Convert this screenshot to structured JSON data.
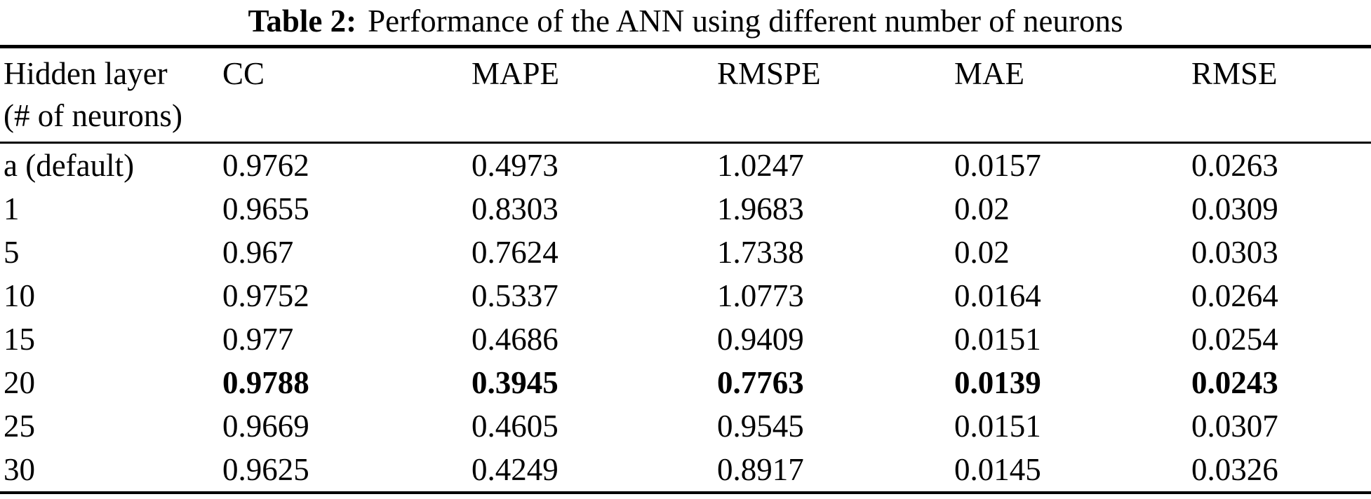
{
  "caption": {
    "label": "Table 2:",
    "text": "Performance of the ANN using different number of neurons"
  },
  "table": {
    "headers": [
      "Hidden layer\n(# of neurons)",
      "CC",
      "MAPE",
      "RMSPE",
      "MAE",
      "RMSE"
    ],
    "rows": [
      {
        "cells": [
          "a (default)",
          "0.9762",
          "0.4973",
          "1.0247",
          "0.0157",
          "0.0263"
        ],
        "emphasis": false
      },
      {
        "cells": [
          "1",
          "0.9655",
          "0.8303",
          "1.9683",
          "0.02",
          "0.0309"
        ],
        "emphasis": false
      },
      {
        "cells": [
          "5",
          "0.967",
          "0.7624",
          "1.7338",
          "0.02",
          "0.0303"
        ],
        "emphasis": false
      },
      {
        "cells": [
          "10",
          "0.9752",
          "0.5337",
          "1.0773",
          "0.0164",
          "0.0264"
        ],
        "emphasis": false
      },
      {
        "cells": [
          "15",
          "0.977",
          "0.4686",
          "0.9409",
          "0.0151",
          "0.0254"
        ],
        "emphasis": false
      },
      {
        "cells": [
          "20",
          "0.9788",
          "0.3945",
          "0.7763",
          "0.0139",
          "0.0243"
        ],
        "emphasis": true
      },
      {
        "cells": [
          "25",
          "0.9669",
          "0.4605",
          "0.9545",
          "0.0151",
          "0.0307"
        ],
        "emphasis": false
      },
      {
        "cells": [
          "30",
          "0.9625",
          "0.4249",
          "0.8917",
          "0.0145",
          "0.0326"
        ],
        "emphasis": false
      }
    ],
    "colors": {
      "text": "#000000",
      "background": "#ffffff",
      "rule": "#000000"
    }
  }
}
